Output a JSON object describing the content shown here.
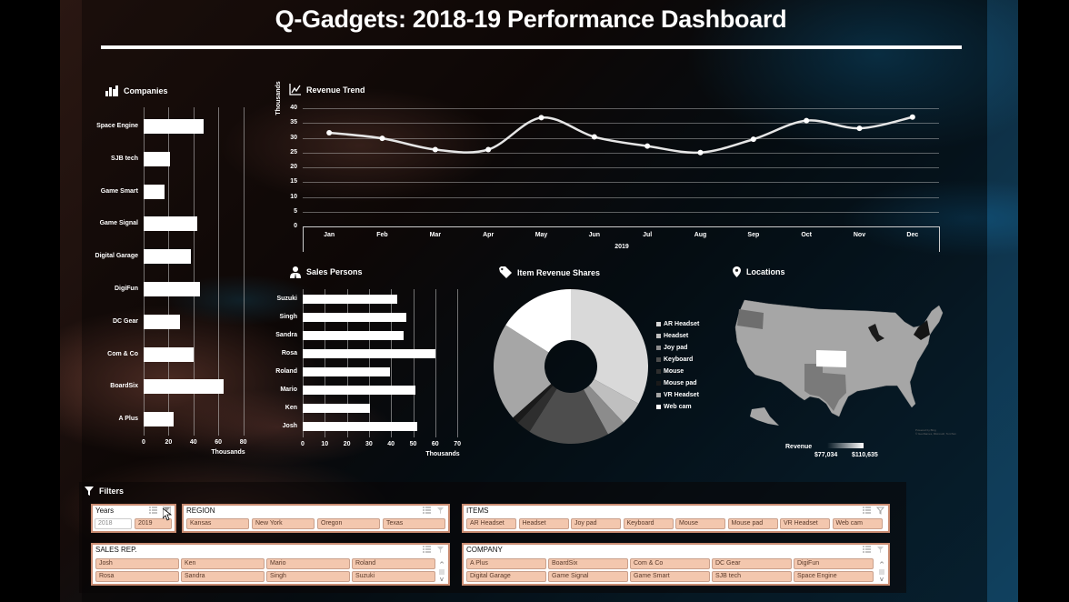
{
  "dashboard": {
    "title": "Q-Gadgets: 2018-19 Performance Dashboard"
  },
  "companies": {
    "title": "Companies",
    "icon": "bar-chart-icon",
    "axis_unit": "Thousands",
    "ticks": [
      "0",
      "20",
      "40",
      "60",
      "80"
    ]
  },
  "revenue_trend": {
    "title": "Revenue Trend",
    "icon": "line-chart-icon",
    "yaxis_label": "Thousands",
    "yticks": [
      "40",
      "35",
      "30",
      "25",
      "20",
      "15",
      "10",
      "5",
      "0"
    ],
    "xaxis_title": "2019"
  },
  "sales_persons": {
    "title": "Sales Persons",
    "icon": "person-icon",
    "axis_unit": "Thousands",
    "ticks": [
      "0",
      "10",
      "20",
      "30",
      "40",
      "50",
      "60",
      "70"
    ]
  },
  "item_revenue": {
    "title": "Item Revenue Shares",
    "icon": "tag-icon"
  },
  "locations": {
    "title": "Locations",
    "icon": "map-pin-icon",
    "legend_title": "Revenue",
    "legend_min": "$77,034",
    "legend_max": "$110,635",
    "attribution_1": "Powered by Bing",
    "attribution_2": "© GeoNames, Microsoft, TomTom"
  },
  "filters": {
    "title": "Filters",
    "years": {
      "label": "Years",
      "options": [
        {
          "label": "2018",
          "selected": false
        },
        {
          "label": "2019",
          "selected": true
        }
      ]
    },
    "region": {
      "label": "REGION",
      "options": [
        "Kansas",
        "New York",
        "Oregon",
        "Texas"
      ]
    },
    "items": {
      "label": "ITEMS",
      "options": [
        "AR Headset",
        "Headset",
        "Joy pad",
        "Keyboard",
        "Mouse",
        "Mouse pad",
        "VR Headset",
        "Web cam"
      ]
    },
    "sales_rep": {
      "label": "SALES REP.",
      "options": [
        "Josh",
        "Ken",
        "Mario",
        "Roland",
        "Rosa",
        "Sandra",
        "Singh",
        "Suzuki"
      ]
    },
    "company": {
      "label": "COMPANY",
      "options": [
        "A Plus",
        "BoardSix",
        "Com & Co",
        "DC Gear",
        "DigiFun",
        "Digital Garage",
        "Game Signal",
        "Game Smart",
        "SJB tech",
        "Space Engine"
      ]
    }
  },
  "chart_data": [
    {
      "type": "bar",
      "title": "Companies",
      "orientation": "horizontal",
      "categories": [
        "Space Engine",
        "SJB tech",
        "Game Smart",
        "Game Signal",
        "Digital Garage",
        "DigiFun",
        "DC Gear",
        "Com & Co",
        "BoardSix",
        "A Plus"
      ],
      "values": [
        48,
        21,
        17,
        43,
        38,
        45,
        29,
        40,
        64,
        24
      ],
      "xlabel": "Thousands",
      "xlim": [
        0,
        80
      ],
      "grid": true
    },
    {
      "type": "line",
      "title": "Revenue Trend",
      "x": [
        "Jan",
        "Feb",
        "Mar",
        "Apr",
        "May",
        "Jun",
        "Jul",
        "Aug",
        "Sep",
        "Oct",
        "Nov",
        "Dec"
      ],
      "values": [
        31.7,
        29.8,
        26.0,
        26.0,
        36.8,
        30.3,
        27.2,
        25.0,
        29.5,
        35.8,
        33.2,
        37.0
      ],
      "xlabel": "2019",
      "ylabel": "Thousands",
      "ylim": [
        0,
        40
      ],
      "grid": true,
      "smooth": true
    },
    {
      "type": "bar",
      "title": "Sales Persons",
      "orientation": "horizontal",
      "categories": [
        "Suzuki",
        "Singh",
        "Sandra",
        "Rosa",
        "Roland",
        "Mario",
        "Ken",
        "Josh"
      ],
      "values": [
        43,
        47,
        45.5,
        60,
        39.5,
        51,
        30.5,
        52
      ],
      "xlabel": "Thousands",
      "xlim": [
        0,
        70
      ],
      "grid": true
    },
    {
      "type": "pie",
      "title": "Item Revenue Shares",
      "donut": true,
      "categories": [
        "AR Headset",
        "Headset",
        "Joy pad",
        "Keyboard",
        "Mouse",
        "Mouse pad",
        "VR Headset",
        "Web cam"
      ],
      "values": [
        33,
        5,
        4,
        17,
        3,
        1.5,
        20.5,
        16
      ],
      "colors": [
        "#d9d9d9",
        "#bfbfbf",
        "#8c8c8c",
        "#4d4d4d",
        "#2e2e2e",
        "#1a1a1a",
        "#a6a6a6",
        "#ffffff"
      ],
      "legend_position": "right"
    }
  ]
}
